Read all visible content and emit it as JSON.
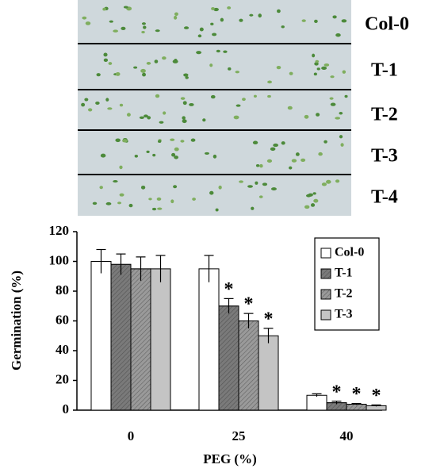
{
  "photo": {
    "labels": [
      "Col-0",
      "T-1",
      "T-2",
      "T-3",
      "T-4"
    ]
  },
  "chart_data": {
    "type": "bar",
    "xlabel": "PEG (%)",
    "ylabel": "Germination (%)",
    "categories": [
      "0",
      "25",
      "40"
    ],
    "series": [
      {
        "name": "Col-0",
        "color": "#ffffff",
        "hatch": false,
        "values": [
          100,
          95,
          10
        ],
        "errors": [
          8,
          9,
          1
        ],
        "markers": [
          null,
          null,
          null
        ]
      },
      {
        "name": "T-1",
        "color": "#7a7a7a",
        "hatch": true,
        "values": [
          98,
          70,
          5
        ],
        "errors": [
          7,
          5,
          1
        ],
        "markers": [
          null,
          "*",
          "*"
        ]
      },
      {
        "name": "T-2",
        "color": "#9a9a9a",
        "hatch": true,
        "values": [
          95,
          60,
          4
        ],
        "errors": [
          8,
          5,
          0.5
        ],
        "markers": [
          null,
          "*",
          "*"
        ]
      },
      {
        "name": "T-3",
        "color": "#c4c4c4",
        "hatch": false,
        "values": [
          95,
          50,
          3
        ],
        "errors": [
          9,
          5,
          0.5
        ],
        "markers": [
          null,
          "*",
          "*"
        ]
      }
    ],
    "ylim": [
      0,
      120
    ],
    "yticks": [
      0,
      20,
      40,
      60,
      80,
      100,
      120
    ],
    "legend": "upper right"
  }
}
